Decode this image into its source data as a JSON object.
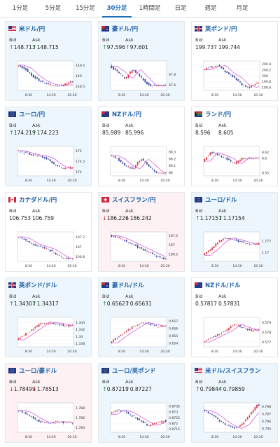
{
  "tabs": [
    "1分足",
    "5分足",
    "15分足",
    "30分足",
    "1時間足",
    "日足",
    "週足",
    "月足"
  ],
  "active_tab": 3,
  "labels": {
    "bid": "Bid",
    "ask": "Ask"
  },
  "colors": {
    "up_arrow": "#2e8a3a",
    "down_arrow": "#d0283a",
    "title": "#1a5fa8",
    "ma_line": "#d02bd0",
    "bull": "#d9303c",
    "bear": "#2f3f9e"
  },
  "cards": [
    {
      "name": "usd-jpy",
      "title": "米ドル/円",
      "bid": "148.713",
      "ask": "148.715",
      "dir": "up",
      "flag": "us",
      "chart_data": {
        "type": "candlestick",
        "x_ticks": [
          "8:30",
          "14:30",
          "20:30"
        ],
        "y_ticks": [
          "148.5",
          "149",
          "149.5"
        ],
        "ylim": [
          148.3,
          149.7
        ],
        "trend": [
          149.5,
          149.35,
          149.0,
          148.75,
          148.6,
          148.5,
          148.55,
          148.7
        ]
      }
    },
    {
      "name": "aud-jpy",
      "title": "豪ドル/円",
      "bid": "97.596",
      "ask": "97.601",
      "dir": "up",
      "flag": "au",
      "chart_data": {
        "type": "candlestick",
        "x_ticks": [
          "8:30",
          "14:30",
          "20:30"
        ],
        "y_ticks": [
          "97.6",
          "97.8"
        ],
        "ylim": [
          97.5,
          98.05
        ],
        "trend": [
          97.95,
          97.85,
          97.72,
          97.9,
          97.75,
          97.6,
          97.58,
          97.6
        ]
      }
    },
    {
      "name": "gbp-jpy",
      "title": "英ポンド/円",
      "bid": "199.737",
      "ask": "199.744",
      "dir": "flat",
      "flag": "gb",
      "chart_data": {
        "type": "candlestick",
        "x_ticks": [
          "8:30",
          "14:30",
          "20:30"
        ],
        "y_ticks": [
          "199.6",
          "199.8",
          "200",
          "200.2",
          "200.4"
        ],
        "ylim": [
          199.5,
          200.5
        ],
        "trend": [
          200.2,
          200.3,
          200.35,
          200.1,
          199.95,
          199.7,
          199.6,
          199.75
        ]
      }
    },
    {
      "name": "eur-jpy",
      "title": "ユーロ/円",
      "bid": "174.219",
      "ask": "174.223",
      "dir": "up",
      "flag": "eu",
      "chart_data": {
        "type": "candlestick",
        "x_ticks": [
          "8:30",
          "14:30",
          "20:30"
        ],
        "y_ticks": [
          "174",
          "174.5",
          "175"
        ],
        "ylim": [
          173.8,
          175.2
        ],
        "trend": [
          175.0,
          174.9,
          174.8,
          174.75,
          174.6,
          174.3,
          174.15,
          174.2
        ]
      }
    },
    {
      "name": "nzd-jpy",
      "title": "NZドル/円",
      "bid": "85.989",
      "ask": "85.996",
      "dir": "flat",
      "flag": "nz",
      "chart_data": {
        "type": "candlestick",
        "x_ticks": [
          "8:30",
          "14:30",
          "20:30"
        ],
        "y_ticks": [
          "86",
          "86.1",
          "86.2",
          "86.3"
        ],
        "ylim": [
          85.95,
          86.38
        ],
        "trend": [
          86.25,
          86.2,
          86.1,
          86.05,
          86.2,
          86.1,
          86.0,
          85.99
        ]
      }
    },
    {
      "name": "zar-jpy",
      "title": "ランド/円",
      "bid": "8.596",
      "ask": "8.605",
      "dir": "flat",
      "flag": "za",
      "chart_data": {
        "type": "candlestick",
        "x_ticks": [
          "8:30",
          "14:30",
          "20:30"
        ],
        "y_ticks": [
          "8.55",
          "8.6",
          "8.62"
        ],
        "ylim": [
          8.54,
          8.64
        ],
        "trend": [
          8.59,
          8.62,
          8.61,
          8.6,
          8.58,
          8.6,
          8.6,
          8.6
        ]
      }
    },
    {
      "name": "cad-jpy",
      "title": "カナダドル/円",
      "bid": "106.753",
      "ask": "106.759",
      "dir": "flat",
      "flag": "ca",
      "chart_data": {
        "type": "candlestick",
        "x_ticks": [
          "8:30",
          "14:30",
          "20:30"
        ],
        "y_ticks": [
          "106.8",
          "107",
          "107.2"
        ],
        "ylim": [
          106.7,
          107.3
        ],
        "trend": [
          107.2,
          107.15,
          107.05,
          107.0,
          106.95,
          106.85,
          106.76,
          106.75
        ]
      }
    },
    {
      "name": "chf-jpy",
      "title": "スイスフラン/円",
      "bid": "186.226",
      "ask": "186.242",
      "dir": "down",
      "flag": "ch",
      "chart_data": {
        "type": "candlestick",
        "x_ticks": [
          "8:30",
          "14:30",
          "20:30"
        ],
        "y_ticks": [
          "186.5",
          "187",
          "187.5"
        ],
        "ylim": [
          186.1,
          187.7
        ],
        "trend": [
          187.5,
          187.4,
          187.2,
          187.0,
          186.8,
          186.6,
          186.4,
          186.23
        ]
      }
    },
    {
      "name": "eur-usd",
      "title": "ユーロ/ドル",
      "bid": "1.17151",
      "ask": "1.17154",
      "dir": "up",
      "flag": "eu",
      "chart_data": {
        "type": "candlestick",
        "x_ticks": [
          "8:30",
          "14:30",
          "20:30"
        ],
        "y_ticks": [
          "1.17",
          "1.172"
        ],
        "ylim": [
          1.1685,
          1.1735
        ],
        "trend": [
          1.1695,
          1.1705,
          1.1718,
          1.1725,
          1.1722,
          1.1718,
          1.1714,
          1.1715
        ]
      }
    },
    {
      "name": "gbp-usd",
      "title": "英ポンド/ドル",
      "bid": "1.34307",
      "ask": "1.34317",
      "dir": "up",
      "flag": "gb",
      "chart_data": {
        "type": "candlestick",
        "x_ticks": [
          "8:30",
          "14:30",
          "20:30"
        ],
        "y_ticks": [
          "1.338",
          "1.34",
          "1.342",
          "1.344"
        ],
        "ylim": [
          1.337,
          1.3455
        ],
        "trend": [
          1.339,
          1.3405,
          1.342,
          1.3435,
          1.344,
          1.3438,
          1.3432,
          1.3431
        ]
      }
    },
    {
      "name": "aud-usd",
      "title": "豪ドル/ドル",
      "bid": "0.65627",
      "ask": "0.65631",
      "dir": "up",
      "flag": "au",
      "chart_data": {
        "type": "candlestick",
        "x_ticks": [
          "8:30",
          "14:30",
          "20:30"
        ],
        "y_ticks": [
          "0.654",
          "0.655",
          "0.656",
          "0.657"
        ],
        "ylim": [
          0.6535,
          0.6575
        ],
        "trend": [
          0.654,
          0.6548,
          0.6555,
          0.6562,
          0.6568,
          0.6566,
          0.6563,
          0.6563
        ]
      }
    },
    {
      "name": "nzd-usd",
      "title": "NZドル/ドル",
      "bid": "0.57817",
      "ask": "0.57831",
      "dir": "flat",
      "flag": "nz",
      "chart_data": {
        "type": "candlestick",
        "x_ticks": [
          "8:30",
          "14:30",
          "20:30"
        ],
        "y_ticks": [
          "0.577",
          "0.578",
          "0.579"
        ],
        "ylim": [
          0.5765,
          0.5795
        ],
        "trend": [
          0.577,
          0.5774,
          0.5778,
          0.5782,
          0.5788,
          0.5785,
          0.5782,
          0.5782
        ]
      }
    },
    {
      "name": "eur-aud",
      "title": "ユーロ/豪ドル",
      "bid": "1.78499",
      "ask": "1.78513",
      "dir": "down",
      "flag": "eu",
      "chart_data": {
        "type": "candlestick",
        "x_ticks": [
          "8:30",
          "14:30",
          "20:30"
        ],
        "y_ticks": [
          "1.784",
          "1.786",
          "1.788"
        ],
        "ylim": [
          1.783,
          1.789
        ],
        "trend": [
          1.7875,
          1.787,
          1.786,
          1.7852,
          1.7848,
          1.7852,
          1.785,
          1.785
        ]
      }
    },
    {
      "name": "eur-gbp",
      "title": "ユーロ/英ポンド",
      "bid": "0.87219",
      "ask": "0.87227",
      "dir": "up",
      "flag": "eu",
      "chart_data": {
        "type": "candlestick",
        "x_ticks": [
          "8:30",
          "14:30",
          "20:30"
        ],
        "y_ticks": [
          "0.8715",
          "0.872",
          "0.8725",
          "0.873",
          "0.8735"
        ],
        "ylim": [
          0.8712,
          0.8738
        ],
        "trend": [
          0.8728,
          0.8732,
          0.873,
          0.8726,
          0.8722,
          0.8718,
          0.872,
          0.8722
        ]
      }
    },
    {
      "name": "usd-chf",
      "title": "米ドル/スイスフラン",
      "bid": "0.79844",
      "ask": "0.79859",
      "dir": "up",
      "flag": "us",
      "chart_data": {
        "type": "candlestick",
        "x_ticks": [
          "8:30",
          "14:30",
          "20:30"
        ],
        "y_ticks": [
          "0.795",
          "0.796",
          "0.797",
          "0.798"
        ],
        "ylim": [
          0.7945,
          0.7985
        ],
        "trend": [
          0.7975,
          0.797,
          0.7962,
          0.7955,
          0.795,
          0.7955,
          0.7968,
          0.7982
        ]
      }
    }
  ]
}
